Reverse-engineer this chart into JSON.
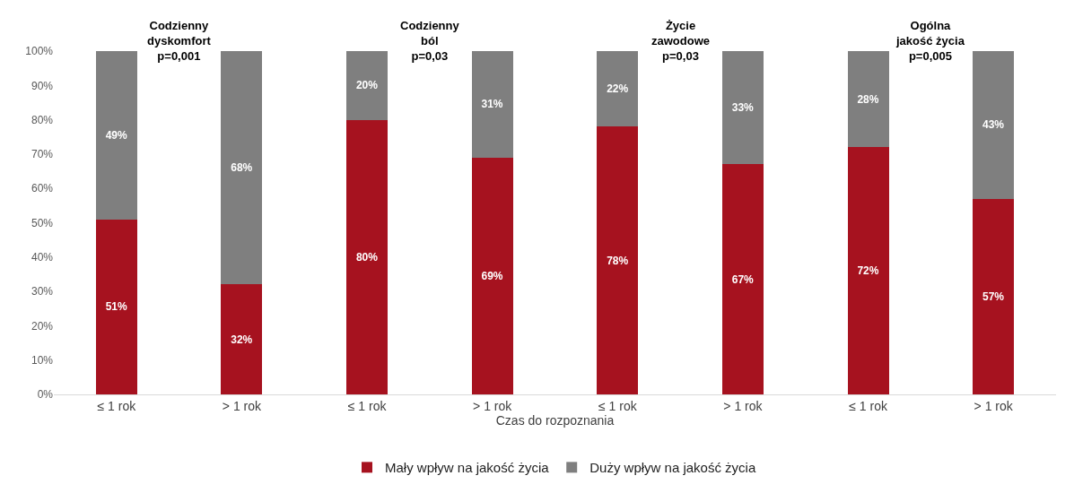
{
  "chart_data": {
    "type": "bar",
    "stacked": true,
    "xlabel": "Czas do rozpoznania",
    "categories": [
      "≤ 1 rok",
      "> 1 rok",
      "≤ 1 rok",
      "> 1 rok",
      "≤ 1 rok",
      "> 1 rok",
      "≤ 1 rok",
      "> 1 rok"
    ],
    "series": [
      {
        "name": "Mały wpływ na jakość życia",
        "color": "#a6121f",
        "values": [
          51,
          32,
          80,
          69,
          78,
          67,
          72,
          57
        ],
        "value_labels": [
          "51%",
          "32%",
          "80%",
          "69%",
          "78%",
          "67%",
          "72%",
          "57%"
        ]
      },
      {
        "name": "Duży wpływ na jakość życia",
        "color": "#7f7f7f",
        "values": [
          49,
          68,
          20,
          31,
          22,
          33,
          28,
          43
        ],
        "value_labels": [
          "49%",
          "68%",
          "20%",
          "31%",
          "22%",
          "33%",
          "28%",
          "43%"
        ]
      }
    ],
    "ylim": [
      0,
      100
    ],
    "yticks": [
      {
        "value": 0,
        "label": "0%"
      },
      {
        "value": 10,
        "label": "10%"
      },
      {
        "value": 20,
        "label": "20%"
      },
      {
        "value": 30,
        "label": "30%"
      },
      {
        "value": 40,
        "label": "40%"
      },
      {
        "value": 50,
        "label": "50%"
      },
      {
        "value": 60,
        "label": "60%"
      },
      {
        "value": 70,
        "label": "70%"
      },
      {
        "value": 80,
        "label": "80%"
      },
      {
        "value": 90,
        "label": "90%"
      },
      {
        "value": 100,
        "label": "100%"
      }
    ],
    "annotations": [
      "Codzienny\ndyskomfort\np=0,001",
      "Codzienny\nból\np=0,03",
      "Życie\nzawodowe\np=0,03",
      "Ogólna\njakość życia\np=0,005"
    ],
    "grid": false,
    "legend": "bottom"
  }
}
